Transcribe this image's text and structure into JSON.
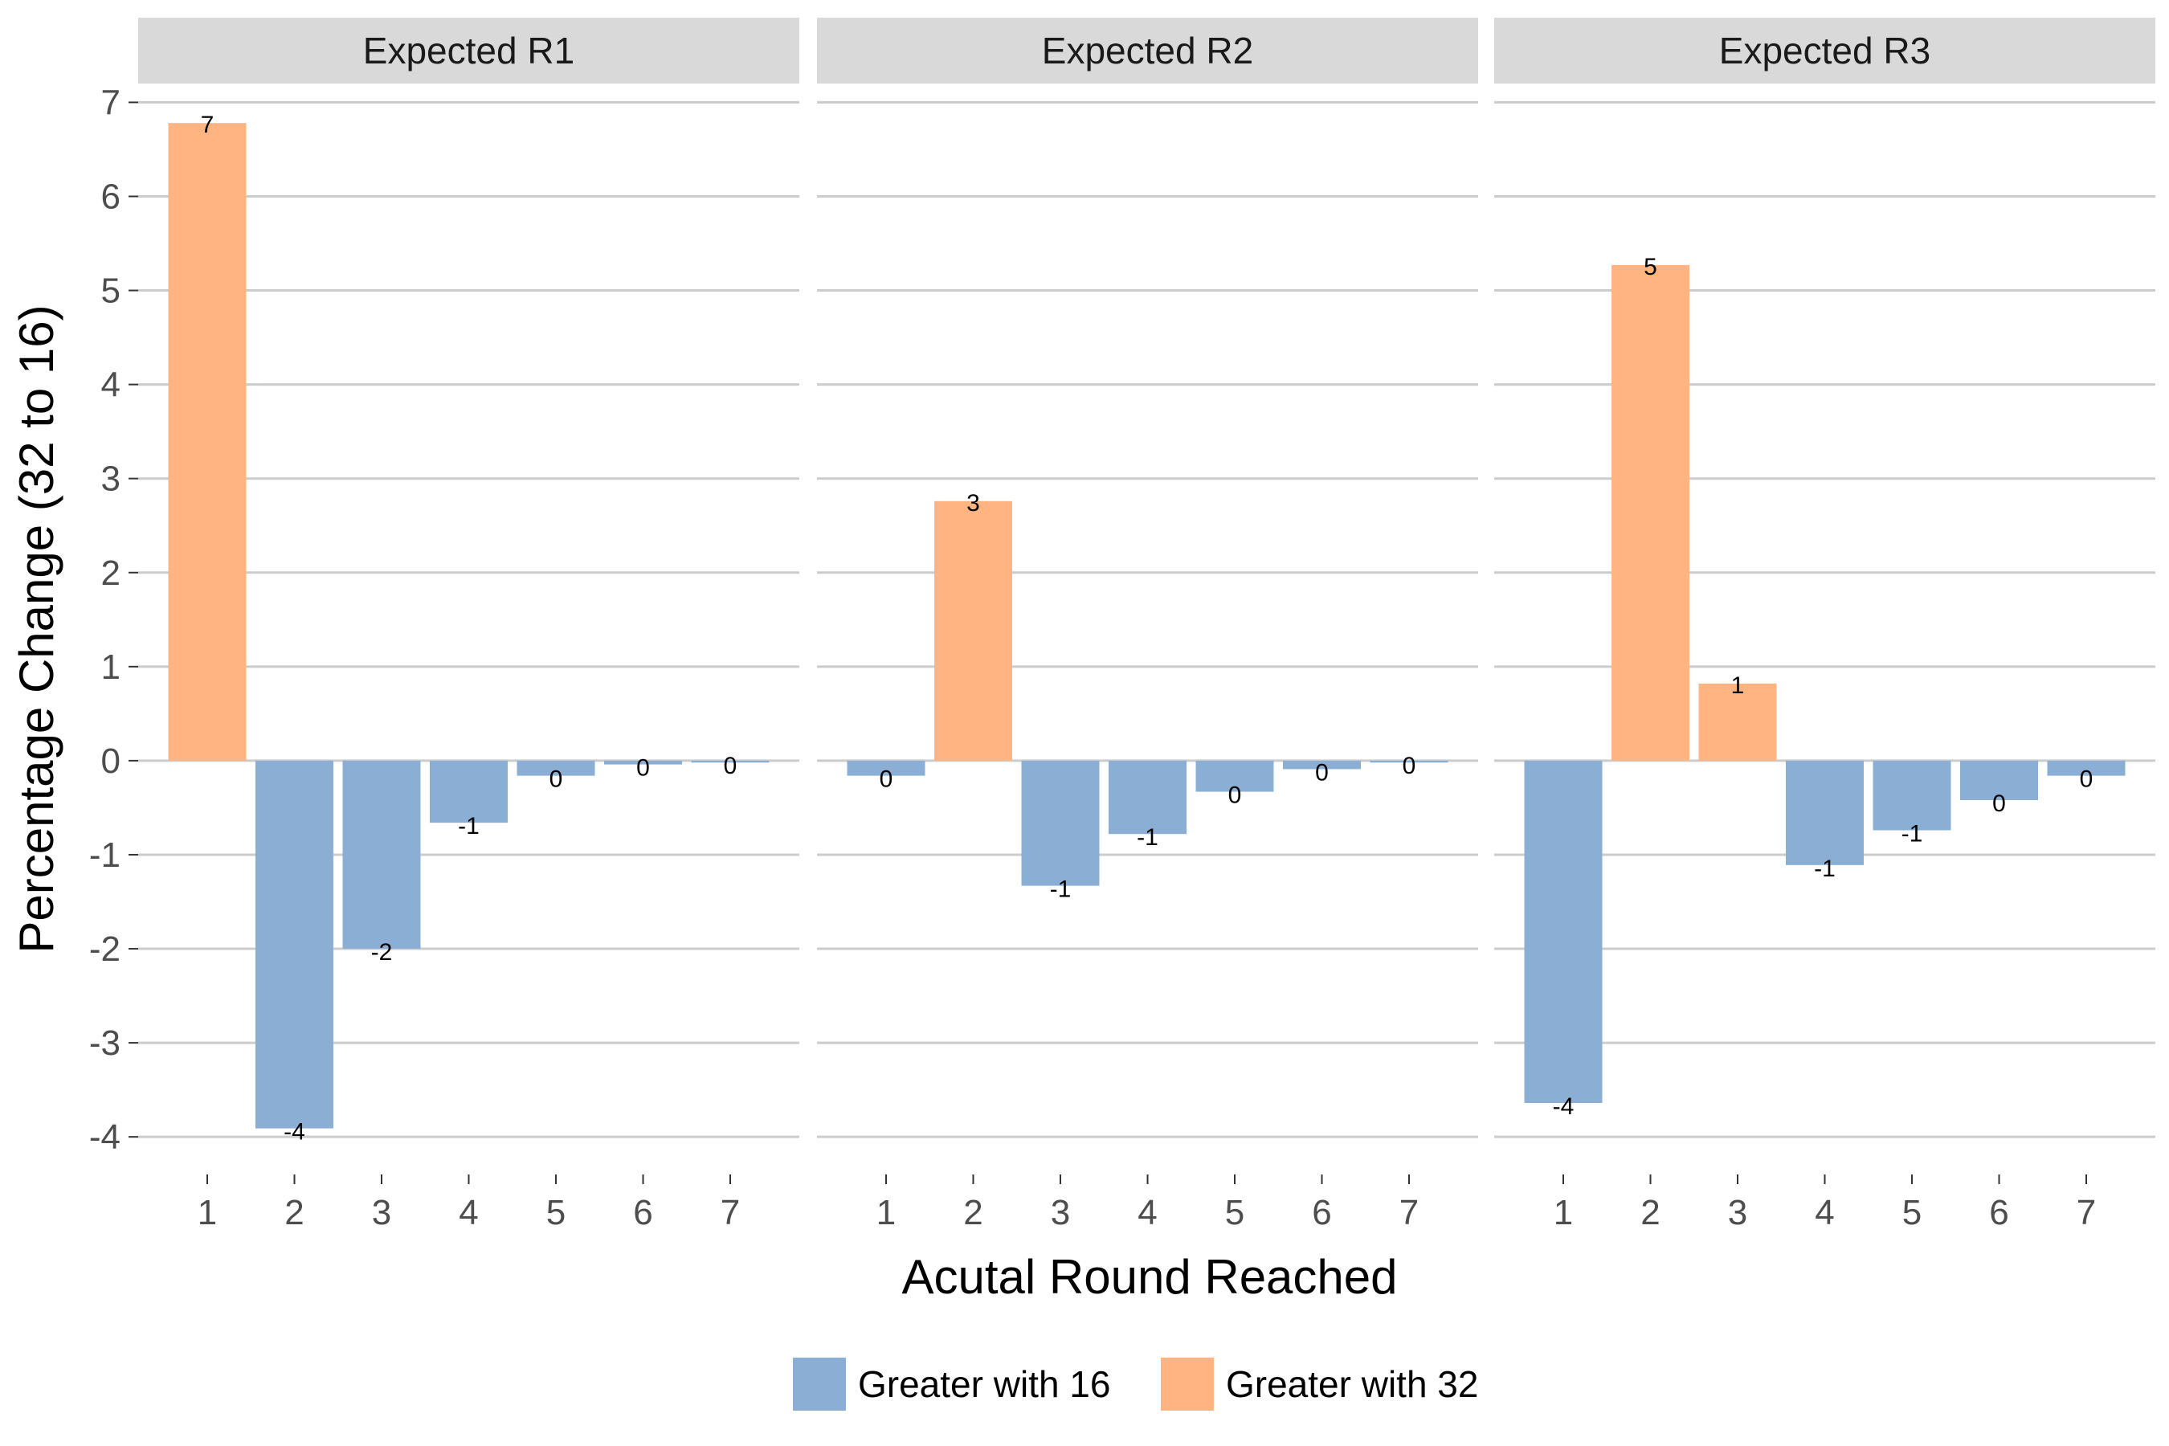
{
  "chart_data": {
    "type": "bar",
    "facets": [
      {
        "strip_label": "Expected R1",
        "categories": [
          "1",
          "2",
          "3",
          "4",
          "5",
          "6",
          "7"
        ],
        "values": [
          6.78,
          -3.91,
          -2.0,
          -0.66,
          -0.16,
          -0.04,
          -0.02
        ],
        "labels": [
          "7",
          "-4",
          "-2",
          "-1",
          "0",
          "0",
          "0"
        ]
      },
      {
        "strip_label": "Expected R2",
        "categories": [
          "1",
          "2",
          "3",
          "4",
          "5",
          "6",
          "7"
        ],
        "values": [
          -0.16,
          2.76,
          -1.33,
          -0.78,
          -0.33,
          -0.09,
          -0.02
        ],
        "labels": [
          "0",
          "3",
          "-1",
          "-1",
          "0",
          "0",
          "0"
        ]
      },
      {
        "strip_label": "Expected R3",
        "categories": [
          "1",
          "2",
          "3",
          "4",
          "5",
          "6",
          "7"
        ],
        "values": [
          -3.64,
          5.27,
          0.82,
          -1.11,
          -0.74,
          -0.42,
          -0.16
        ],
        "labels": [
          "-4",
          "5",
          "1",
          "-1",
          "-1",
          "0",
          "0"
        ]
      }
    ],
    "xlabel": "Acutal Round Reached",
    "ylabel": "Percentage Change (32 to 16)",
    "ylim": [
      -4.4,
      7.2
    ],
    "yticks": [
      -4,
      -3,
      -2,
      -1,
      0,
      1,
      2,
      3,
      4,
      5,
      6,
      7
    ],
    "grid": true,
    "legend": {
      "placement": "bottom",
      "entries": [
        {
          "name": "Greater with 16",
          "color": "#8BAFD4"
        },
        {
          "name": "Greater with 32",
          "color": "#FFB482"
        }
      ]
    },
    "colors": {
      "negative": "#8BAFD4",
      "positive": "#FFB482",
      "strip": "#d9d9d9",
      "grid": "#cccccc"
    }
  }
}
